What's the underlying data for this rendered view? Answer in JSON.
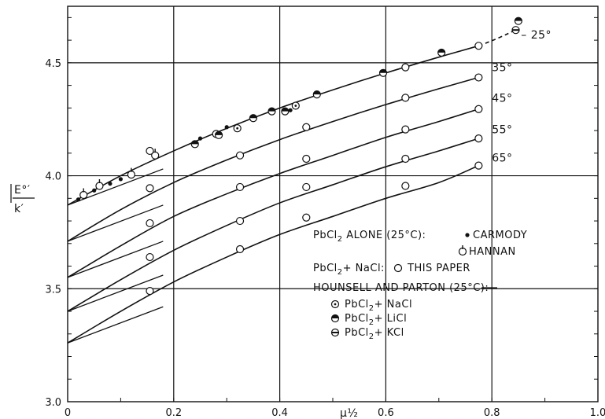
{
  "chart_data": {
    "type": "scatter",
    "title": "",
    "xlabel": "μ½",
    "ylabel": "E°′/k′",
    "xlim": [
      0,
      1.0
    ],
    "ylim": [
      3.0,
      4.75
    ],
    "x_ticks": [
      "0",
      "0.2",
      "0.4",
      "0.6",
      "0.8",
      "1.0"
    ],
    "y_ticks": [
      "3.0",
      "3.5",
      "4.0",
      "4.5"
    ],
    "grid": true,
    "curves": [
      {
        "label": "25°",
        "intercept": 3.87,
        "x": [
          0,
          0.1,
          0.2,
          0.3,
          0.4,
          0.5,
          0.6,
          0.7,
          0.775
        ],
        "y": [
          3.87,
          4.0,
          4.11,
          4.21,
          4.3,
          4.38,
          4.455,
          4.525,
          4.575
        ]
      },
      {
        "label": "35°",
        "intercept": 3.71,
        "x": [
          0,
          0.1,
          0.2,
          0.3,
          0.4,
          0.5,
          0.6,
          0.7,
          0.775
        ],
        "y": [
          3.71,
          3.85,
          3.97,
          4.07,
          4.16,
          4.24,
          4.315,
          4.385,
          4.435
        ]
      },
      {
        "label": "45°",
        "intercept": 3.55,
        "x": [
          0,
          0.1,
          0.2,
          0.3,
          0.4,
          0.5,
          0.6,
          0.7,
          0.775
        ],
        "y": [
          3.55,
          3.69,
          3.82,
          3.92,
          4.01,
          4.09,
          4.17,
          4.24,
          4.295
        ]
      },
      {
        "label": "55°",
        "intercept": 3.4,
        "x": [
          0,
          0.1,
          0.2,
          0.3,
          0.4,
          0.5,
          0.6,
          0.7,
          0.775
        ],
        "y": [
          3.4,
          3.54,
          3.67,
          3.78,
          3.88,
          3.96,
          4.04,
          4.11,
          4.165
        ]
      },
      {
        "label": "65°",
        "intercept": 3.26,
        "x": [
          0,
          0.1,
          0.2,
          0.3,
          0.4,
          0.5,
          0.6,
          0.7,
          0.775
        ],
        "y": [
          3.26,
          3.4,
          3.53,
          3.64,
          3.74,
          3.82,
          3.9,
          3.97,
          4.045
        ]
      }
    ],
    "tangent_lines": [
      {
        "x": [
          0,
          0.18
        ],
        "y": [
          3.87,
          4.03
        ]
      },
      {
        "x": [
          0,
          0.18
        ],
        "y": [
          3.71,
          3.87
        ]
      },
      {
        "x": [
          0,
          0.18
        ],
        "y": [
          3.55,
          3.71
        ]
      },
      {
        "x": [
          0,
          0.18
        ],
        "y": [
          3.4,
          3.56
        ]
      },
      {
        "x": [
          0,
          0.18
        ],
        "y": [
          3.26,
          3.42
        ]
      }
    ],
    "dashed_extension": {
      "x": [
        0.775,
        0.84
      ],
      "y": [
        4.575,
        4.64
      ]
    },
    "series": [
      {
        "name": "PbCl2 alone (25°C): Carmody",
        "marker": "dot",
        "x": [
          0.02,
          0.05,
          0.08,
          0.1,
          0.25,
          0.3,
          0.35,
          0.42
        ],
        "y": [
          3.895,
          3.935,
          3.965,
          3.985,
          4.165,
          4.215,
          4.255,
          4.29
        ]
      },
      {
        "name": "PbCl2 alone (25°C): Hannan",
        "marker": "hannan",
        "x": [
          0.03,
          0.06,
          0.12,
          0.165
        ],
        "y": [
          3.915,
          3.955,
          4.005,
          4.09
        ]
      },
      {
        "name": "PbCl2 + NaCl: This paper",
        "marker": "circle",
        "x": [
          0.155,
          0.155,
          0.155,
          0.155,
          0.155,
          0.325,
          0.325,
          0.325,
          0.325,
          0.45,
          0.45,
          0.45,
          0.45,
          0.637,
          0.637,
          0.637,
          0.637,
          0.637,
          0.775,
          0.775,
          0.775,
          0.775,
          0.775
        ],
        "y": [
          4.11,
          3.945,
          3.79,
          3.64,
          3.49,
          4.09,
          3.95,
          3.8,
          3.675,
          4.215,
          4.075,
          3.95,
          3.815,
          4.48,
          4.345,
          4.205,
          4.075,
          3.955,
          4.575,
          4.435,
          4.295,
          4.165,
          4.045
        ]
      },
      {
        "name": "Hounsell and Parton (25°C): PbCl2 + NaCl",
        "marker": "circle-dot",
        "x": [
          0.28,
          0.32,
          0.43
        ],
        "y": [
          4.185,
          4.21,
          4.31
        ]
      },
      {
        "name": "Hounsell and Parton (25°C): PbCl2 + LiCl",
        "marker": "circle-half",
        "x": [
          0.24,
          0.285,
          0.35,
          0.385,
          0.41,
          0.47,
          0.595,
          0.705,
          0.85
        ],
        "y": [
          4.14,
          4.18,
          4.255,
          4.285,
          4.285,
          4.36,
          4.455,
          4.545,
          4.685
        ]
      },
      {
        "name": "Hounsell and Parton (25°C): PbCl2 + KCl",
        "marker": "circle-bar",
        "x": [
          0.845
        ],
        "y": [
          4.645
        ]
      }
    ],
    "curve_labels": [
      "25°",
      "35°",
      "45°",
      "55°",
      "65°"
    ],
    "legend": {
      "placement": "lower-right",
      "line1_prefix": "PbCl",
      "line1_sub": "2",
      "line1_text": " ALONE (25°C):",
      "carmody": "CARMODY",
      "hannan": "HANNAN",
      "line2_prefix": "PbCl",
      "line2_sub": "2",
      "line2_text": "+ NaCl:",
      "this_paper": "THIS PAPER",
      "hp_title": "HOUNSELL AND PARTON (25°C):",
      "hp_items": [
        {
          "prefix": "PbCl",
          "sub": "2",
          "text": "+ NaCl"
        },
        {
          "prefix": "PbCl",
          "sub": "2",
          "text": "+ LiCl"
        },
        {
          "prefix": "PbCl",
          "sub": "2",
          "text": "+ KCl"
        }
      ]
    }
  }
}
